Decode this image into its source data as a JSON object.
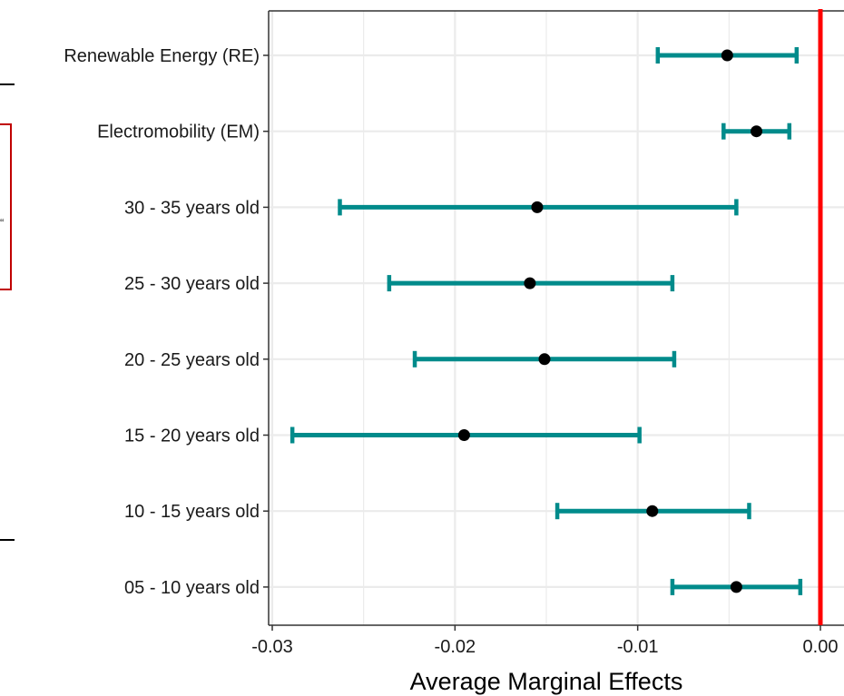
{
  "chart_data": {
    "type": "errorbar",
    "orientation": "horizontal",
    "categories": [
      "Renewable Energy (RE)",
      "Electromobility (EM)",
      "30 - 35 years old",
      "25 - 30 years old",
      "20 - 25 years old",
      "15 - 20 years old",
      "10 - 15 years old",
      "05 - 10 years old"
    ],
    "estimates": [
      -0.0051,
      -0.0035,
      -0.0155,
      -0.0159,
      -0.0151,
      -0.0195,
      -0.0092,
      -0.0046
    ],
    "lower": [
      -0.0089,
      -0.0053,
      -0.0263,
      -0.0236,
      -0.0222,
      -0.0289,
      -0.0144,
      -0.0081
    ],
    "upper": [
      -0.0013,
      -0.0017,
      -0.0046,
      -0.0081,
      -0.008,
      -0.0099,
      -0.0039,
      -0.0011
    ],
    "xlabel": "Average Marginal Effects",
    "ylabel": "",
    "xlim": [
      -0.0305,
      0.0013
    ],
    "xticks": [
      -0.03,
      -0.02,
      -0.01,
      0.0
    ],
    "xtick_labels": [
      "-0.03",
      "-0.02",
      "-0.01",
      "0.00"
    ],
    "reference_line": 0.0,
    "grid": true,
    "colors": {
      "errorbar": "#008b8b",
      "point": "#000000",
      "reference": "#ff0000",
      "grid": "#ebebeb",
      "panel_border": "#333333"
    }
  }
}
